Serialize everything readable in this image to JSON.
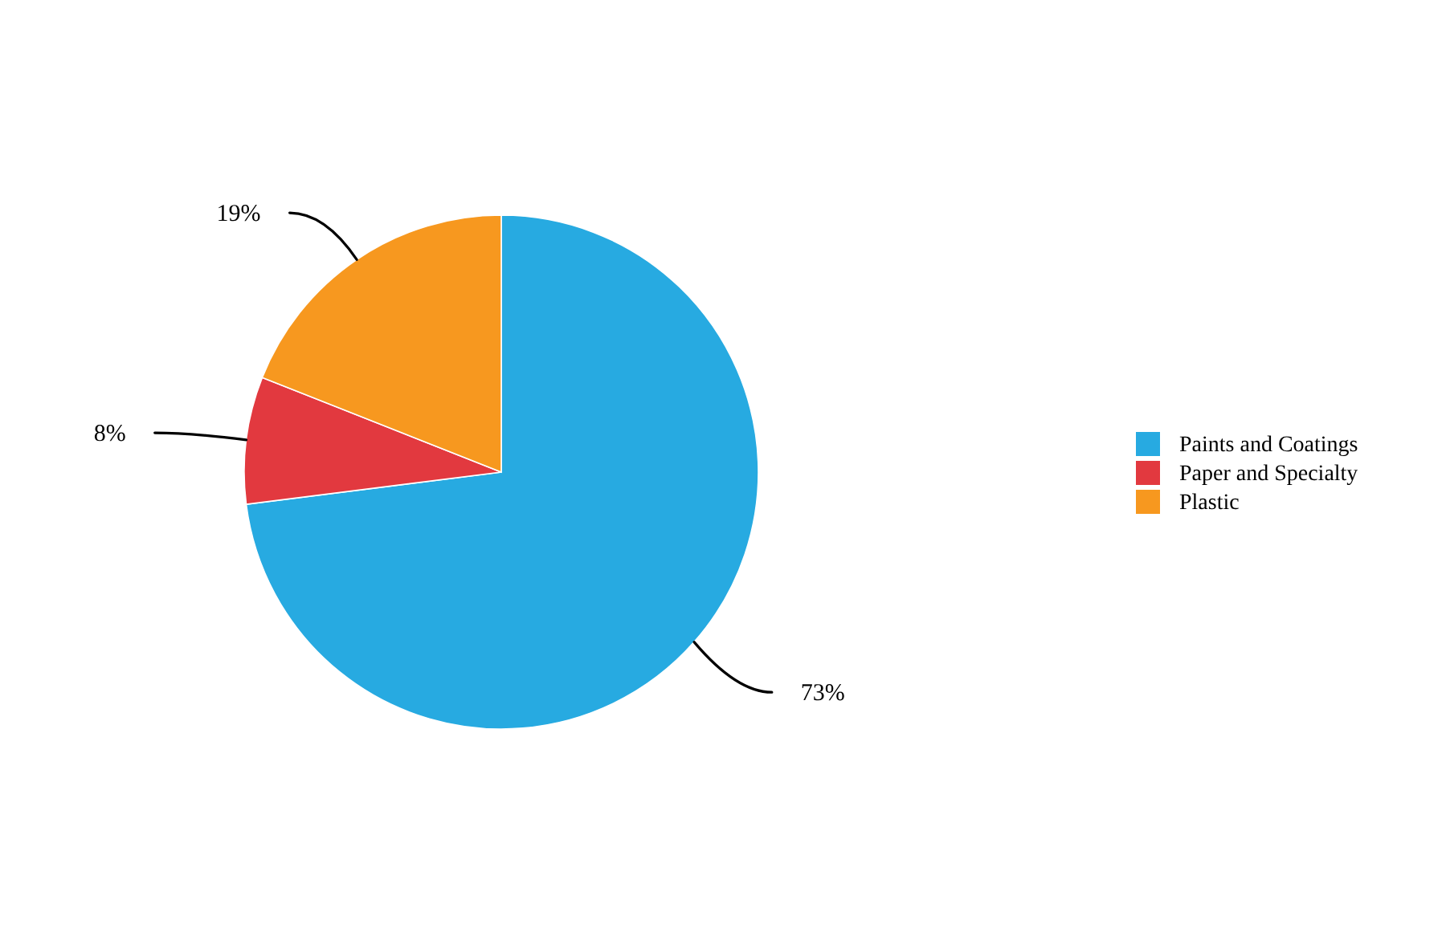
{
  "chart_data": {
    "type": "pie",
    "categories": [
      "Paints and Coatings",
      "Paper and Specialty",
      "Plastic"
    ],
    "values": [
      73,
      8,
      19
    ],
    "value_labels": [
      "73%",
      "8%",
      "19%"
    ],
    "colors": [
      "#27aae1",
      "#e2393f",
      "#f7981f"
    ],
    "legend": "right"
  }
}
